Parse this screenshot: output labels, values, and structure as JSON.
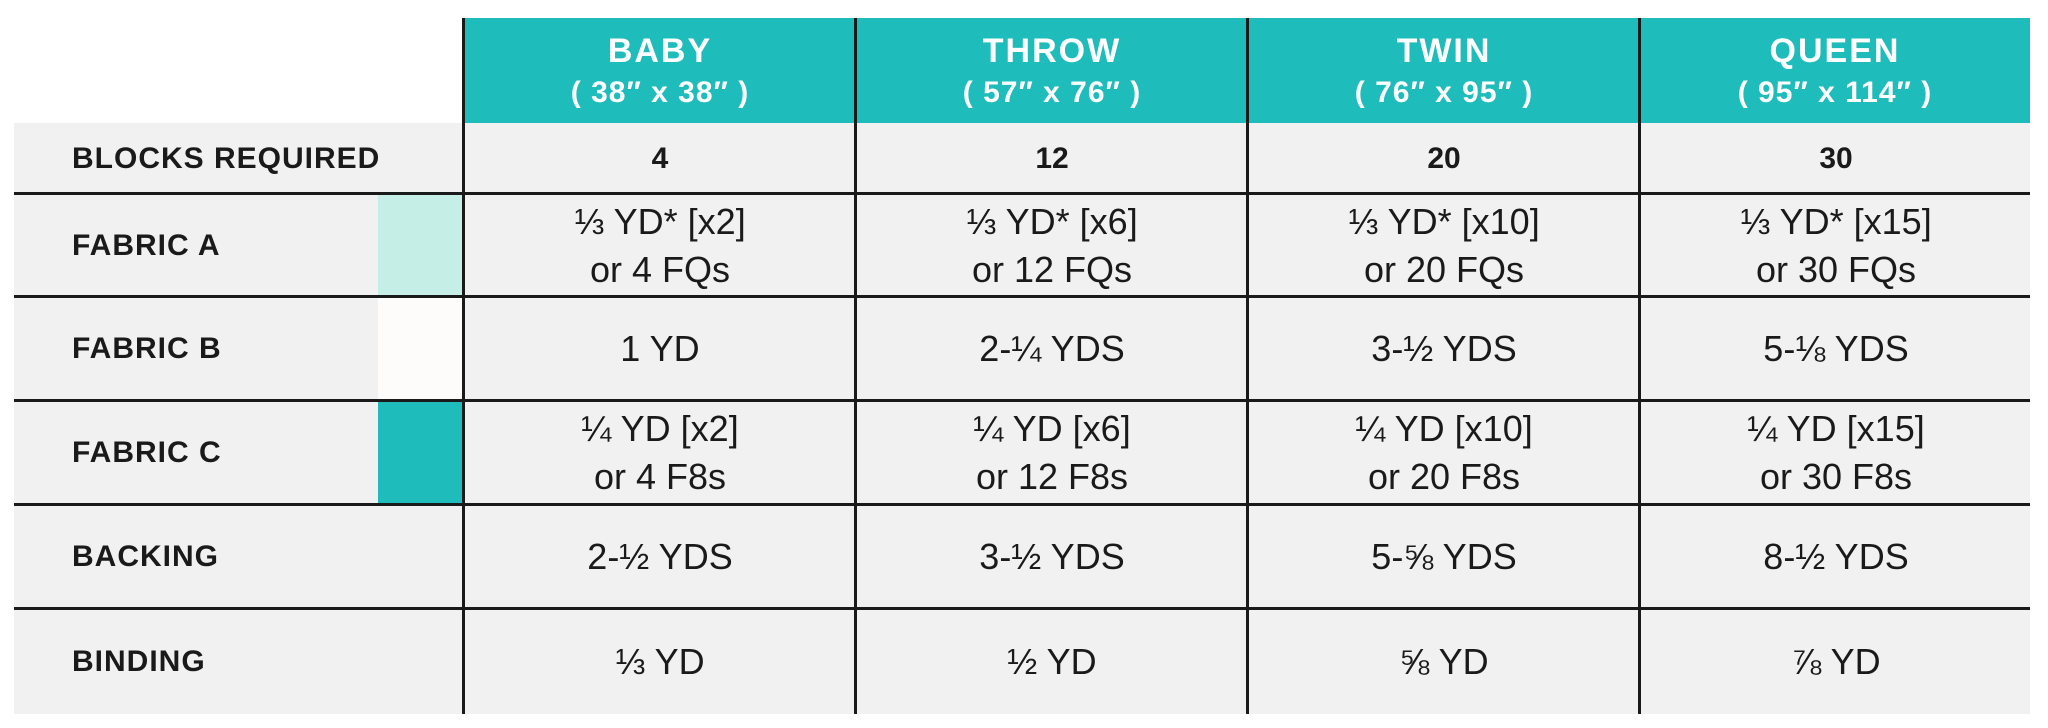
{
  "columns": [
    {
      "name": "BABY",
      "dims": "( 38″ x 38″ )"
    },
    {
      "name": "THROW",
      "dims": "( 57″ x 76″ )"
    },
    {
      "name": "TWIN",
      "dims": "( 76″ x 95″ )"
    },
    {
      "name": "QUEEN",
      "dims": "( 95″ x 114″ )"
    }
  ],
  "rows": [
    {
      "label": "BLOCKS REQUIRED",
      "swatch": null,
      "cells": [
        [
          "4"
        ],
        [
          "12"
        ],
        [
          "20"
        ],
        [
          "30"
        ]
      ]
    },
    {
      "label": "FABRIC A",
      "swatch": "#c4eee6",
      "cells": [
        [
          "⅓ YD* [x2]",
          "or 4 FQs"
        ],
        [
          "⅓ YD* [x6]",
          "or 12 FQs"
        ],
        [
          "⅓ YD* [x10]",
          "or 20 FQs"
        ],
        [
          "⅓ YD* [x15]",
          "or 30 FQs"
        ]
      ]
    },
    {
      "label": "FABRIC B",
      "swatch": "#fdfcfa",
      "cells": [
        [
          "1 YD"
        ],
        [
          "2-¼ YDS"
        ],
        [
          "3-½ YDS"
        ],
        [
          "5-⅛ YDS"
        ]
      ]
    },
    {
      "label": "FABRIC C",
      "swatch": "#1fbcbc",
      "cells": [
        [
          "¼ YD [x2]",
          "or 4 F8s"
        ],
        [
          "¼ YD [x6]",
          "or 12 F8s"
        ],
        [
          "¼ YD [x10]",
          "or 20 F8s"
        ],
        [
          "¼ YD [x15]",
          "or 30 F8s"
        ]
      ]
    },
    {
      "label": "BACKING",
      "swatch": null,
      "cells": [
        [
          "2-½ YDS"
        ],
        [
          "3-½ YDS"
        ],
        [
          "5-⅝ YDS"
        ],
        [
          "8-½ YDS"
        ]
      ]
    },
    {
      "label": "BINDING",
      "swatch": null,
      "cells": [
        [
          "⅓ YD"
        ],
        [
          "½ YD"
        ],
        [
          "⅝ YD"
        ],
        [
          "⅞ YD"
        ]
      ]
    }
  ],
  "colors": {
    "header_teal": "#1fbcbc",
    "row_gray": "#f1f1f1",
    "grid_line": "#1a1a1a"
  }
}
